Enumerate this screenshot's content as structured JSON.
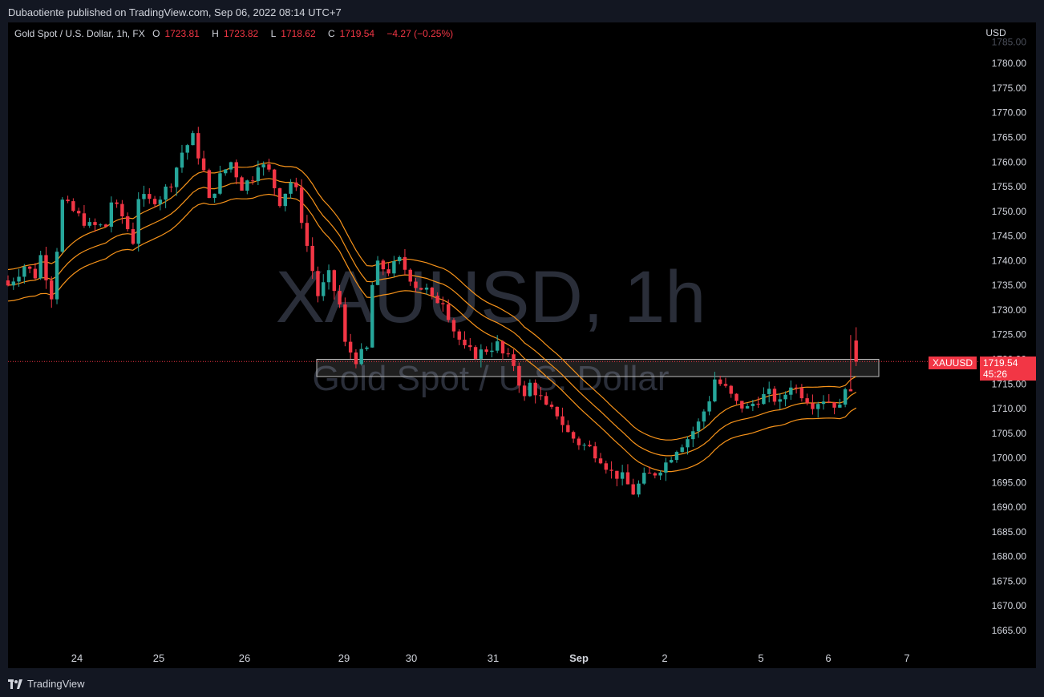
{
  "header": {
    "published": "Dubaotiente published on TradingView.com, Sep 06, 2022 08:14 UTC+7"
  },
  "legend": {
    "symbol": "Gold Spot / U.S. Dollar, 1h, FX",
    "o_label": "O",
    "o_value": "1723.81",
    "h_label": "H",
    "h_value": "1723.82",
    "l_label": "L",
    "l_value": "1718.62",
    "c_label": "C",
    "c_value": "1719.54",
    "change": "−4.27 (−0.25%)"
  },
  "watermark": {
    "line1": "XAUUSD, 1h",
    "line2": "Gold Spot / U.S. Dollar"
  },
  "price_tag": {
    "symbol": "XAUUSD",
    "price": "1719.54",
    "countdown": "45:26"
  },
  "footer": {
    "brand": "TradingView"
  },
  "colors": {
    "up": "#26a69a",
    "down": "#f23645",
    "ema": "#f7931a",
    "background": "#000000",
    "panel": "#131722"
  },
  "chart_data": {
    "type": "candlestick",
    "currency": "USD",
    "y_tick_labels": [
      "1665.00",
      "1670.00",
      "1675.00",
      "1680.00",
      "1685.00",
      "1690.00",
      "1695.00",
      "1700.00",
      "1705.00",
      "1710.00",
      "1715.00",
      "1720.00",
      "1725.00",
      "1730.00",
      "1735.00",
      "1740.00",
      "1745.00",
      "1750.00",
      "1755.00",
      "1760.00",
      "1765.00",
      "1770.00",
      "1775.00",
      "1780.00"
    ],
    "y_top_partial": "1785.00",
    "ylim": [
      1662,
      1785
    ],
    "x_tick_labels": [
      "24",
      "25",
      "26",
      "29",
      "30",
      "31",
      "Sep",
      "2",
      "5",
      "6",
      "7"
    ],
    "last_price": 1719.54,
    "zone": {
      "low": 1716.5,
      "high": 1720.0
    },
    "price_path": [
      [
        0,
        1735
      ],
      [
        3,
        1739
      ],
      [
        5,
        1737
      ],
      [
        6,
        1741
      ],
      [
        8,
        1733
      ],
      [
        10,
        1752
      ],
      [
        13,
        1749
      ],
      [
        15,
        1747
      ],
      [
        18,
        1747
      ],
      [
        19,
        1752
      ],
      [
        21,
        1749
      ],
      [
        23,
        1744
      ],
      [
        24,
        1753
      ],
      [
        26,
        1752
      ],
      [
        28,
        1753
      ],
      [
        30,
        1756
      ],
      [
        32,
        1762
      ],
      [
        34,
        1765
      ],
      [
        36,
        1758
      ],
      [
        37,
        1752
      ],
      [
        39,
        1757
      ],
      [
        41,
        1760
      ],
      [
        43,
        1755
      ],
      [
        45,
        1757
      ],
      [
        46,
        1760
      ],
      [
        48,
        1758
      ],
      [
        50,
        1752
      ],
      [
        52,
        1756
      ],
      [
        53,
        1754
      ],
      [
        55,
        1743
      ],
      [
        57,
        1733
      ],
      [
        59,
        1737
      ],
      [
        61,
        1731
      ],
      [
        62,
        1723
      ],
      [
        64,
        1720
      ],
      [
        66,
        1722
      ],
      [
        67,
        1735
      ],
      [
        68,
        1739
      ],
      [
        70,
        1738
      ],
      [
        72,
        1740
      ],
      [
        75,
        1735
      ],
      [
        77,
        1734
      ],
      [
        78,
        1732
      ],
      [
        80,
        1732
      ],
      [
        82,
        1726
      ],
      [
        84,
        1722
      ],
      [
        86,
        1721
      ],
      [
        88,
        1722
      ],
      [
        90,
        1723
      ],
      [
        91,
        1721
      ],
      [
        93,
        1719
      ],
      [
        95,
        1712
      ],
      [
        96,
        1715
      ],
      [
        98,
        1712
      ],
      [
        99,
        1710
      ],
      [
        101,
        1709
      ],
      [
        103,
        1705
      ],
      [
        105,
        1703
      ],
      [
        107,
        1702
      ],
      [
        109,
        1700
      ],
      [
        111,
        1697
      ],
      [
        113,
        1696
      ],
      [
        115,
        1693
      ],
      [
        117,
        1696
      ],
      [
        119,
        1697
      ],
      [
        121,
        1699
      ],
      [
        123,
        1702
      ],
      [
        125,
        1704
      ],
      [
        127,
        1707
      ],
      [
        129,
        1712
      ],
      [
        130,
        1716
      ],
      [
        132,
        1714
      ],
      [
        134,
        1711
      ],
      [
        136,
        1710
      ],
      [
        138,
        1712
      ],
      [
        140,
        1713
      ],
      [
        142,
        1711
      ],
      [
        144,
        1715
      ],
      [
        146,
        1713
      ],
      [
        148,
        1711
      ],
      [
        150,
        1712
      ],
      [
        152,
        1711
      ],
      [
        153,
        1710
      ],
      [
        154,
        1715
      ],
      [
        155,
        1723.8
      ],
      [
        156,
        1719.54
      ]
    ]
  }
}
